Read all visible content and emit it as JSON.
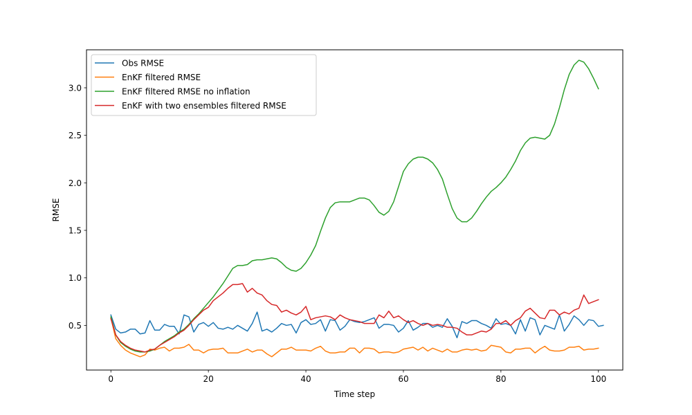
{
  "chart_data": {
    "type": "line",
    "xlabel": "Time step",
    "ylabel": "RMSE",
    "xlim": [
      -5,
      105
    ],
    "ylim": [
      0.03,
      3.4
    ],
    "xticks": [
      0,
      20,
      40,
      60,
      80,
      100
    ],
    "yticks": [
      0.5,
      1.0,
      1.5,
      2.0,
      2.5,
      3.0
    ],
    "xtick_labels": [
      "0",
      "20",
      "40",
      "60",
      "80",
      "100"
    ],
    "ytick_labels": [
      "0.5",
      "1.0",
      "1.5",
      "2.0",
      "2.5",
      "3.0"
    ],
    "grid": false,
    "legend_position": "top-left",
    "series": [
      {
        "name": "Obs RMSE",
        "color": "#1f77b4",
        "values": [
          0.61,
          0.46,
          0.42,
          0.43,
          0.46,
          0.46,
          0.41,
          0.42,
          0.55,
          0.45,
          0.45,
          0.51,
          0.49,
          0.49,
          0.41,
          0.61,
          0.59,
          0.43,
          0.51,
          0.53,
          0.49,
          0.53,
          0.47,
          0.46,
          0.48,
          0.46,
          0.5,
          0.47,
          0.44,
          0.52,
          0.64,
          0.44,
          0.46,
          0.43,
          0.47,
          0.52,
          0.5,
          0.51,
          0.42,
          0.53,
          0.56,
          0.51,
          0.52,
          0.56,
          0.44,
          0.56,
          0.55,
          0.45,
          0.49,
          0.56,
          0.54,
          0.53,
          0.54,
          0.56,
          0.58,
          0.47,
          0.51,
          0.51,
          0.5,
          0.43,
          0.47,
          0.55,
          0.45,
          0.48,
          0.52,
          0.52,
          0.48,
          0.5,
          0.48,
          0.57,
          0.49,
          0.37,
          0.54,
          0.52,
          0.55,
          0.55,
          0.52,
          0.5,
          0.47,
          0.57,
          0.51,
          0.52,
          0.5,
          0.41,
          0.56,
          0.44,
          0.58,
          0.56,
          0.4,
          0.5,
          0.48,
          0.46,
          0.61,
          0.44,
          0.51,
          0.6,
          0.56,
          0.5,
          0.56,
          0.55,
          0.49,
          0.5
        ]
      },
      {
        "name": "EnKF filtered RMSE",
        "color": "#ff7f0e",
        "values": [
          0.58,
          0.36,
          0.29,
          0.24,
          0.21,
          0.19,
          0.17,
          0.19,
          0.25,
          0.24,
          0.26,
          0.27,
          0.23,
          0.26,
          0.26,
          0.27,
          0.3,
          0.24,
          0.24,
          0.21,
          0.24,
          0.25,
          0.25,
          0.26,
          0.21,
          0.21,
          0.21,
          0.23,
          0.25,
          0.22,
          0.24,
          0.24,
          0.2,
          0.17,
          0.21,
          0.25,
          0.25,
          0.27,
          0.24,
          0.24,
          0.24,
          0.23,
          0.26,
          0.28,
          0.23,
          0.21,
          0.21,
          0.22,
          0.22,
          0.26,
          0.26,
          0.21,
          0.26,
          0.26,
          0.25,
          0.21,
          0.22,
          0.22,
          0.21,
          0.22,
          0.25,
          0.26,
          0.27,
          0.24,
          0.27,
          0.23,
          0.26,
          0.24,
          0.22,
          0.25,
          0.22,
          0.22,
          0.24,
          0.25,
          0.24,
          0.25,
          0.23,
          0.24,
          0.29,
          0.28,
          0.27,
          0.22,
          0.21,
          0.25,
          0.25,
          0.26,
          0.26,
          0.21,
          0.25,
          0.28,
          0.24,
          0.23,
          0.23,
          0.24,
          0.27,
          0.27,
          0.28,
          0.24,
          0.25,
          0.25,
          0.26
        ]
      },
      {
        "name": "EnKF filtered RMSE no inflation",
        "color": "#2ca02c",
        "values": [
          0.59,
          0.4,
          0.32,
          0.28,
          0.25,
          0.23,
          0.22,
          0.22,
          0.23,
          0.25,
          0.29,
          0.33,
          0.36,
          0.39,
          0.43,
          0.46,
          0.51,
          0.57,
          0.62,
          0.68,
          0.74,
          0.8,
          0.87,
          0.94,
          1.02,
          1.1,
          1.13,
          1.13,
          1.14,
          1.18,
          1.19,
          1.19,
          1.2,
          1.21,
          1.2,
          1.16,
          1.11,
          1.08,
          1.07,
          1.1,
          1.16,
          1.24,
          1.34,
          1.49,
          1.63,
          1.74,
          1.79,
          1.8,
          1.8,
          1.8,
          1.82,
          1.84,
          1.84,
          1.82,
          1.76,
          1.69,
          1.66,
          1.7,
          1.8,
          1.96,
          2.12,
          2.2,
          2.25,
          2.27,
          2.27,
          2.25,
          2.21,
          2.14,
          2.04,
          1.88,
          1.73,
          1.63,
          1.59,
          1.59,
          1.63,
          1.7,
          1.78,
          1.85,
          1.91,
          1.95,
          2.0,
          2.06,
          2.14,
          2.23,
          2.34,
          2.42,
          2.47,
          2.48,
          2.47,
          2.46,
          2.5,
          2.62,
          2.79,
          2.98,
          3.14,
          3.24,
          3.29,
          3.27,
          3.2,
          3.1,
          2.99
        ]
      },
      {
        "name": "EnKF with two ensembles filtered RMSE",
        "color": "#d62728",
        "values": [
          0.57,
          0.4,
          0.33,
          0.29,
          0.26,
          0.24,
          0.23,
          0.22,
          0.24,
          0.25,
          0.29,
          0.32,
          0.35,
          0.38,
          0.42,
          0.45,
          0.5,
          0.56,
          0.61,
          0.66,
          0.69,
          0.76,
          0.8,
          0.84,
          0.89,
          0.93,
          0.93,
          0.94,
          0.85,
          0.89,
          0.84,
          0.82,
          0.76,
          0.72,
          0.71,
          0.64,
          0.66,
          0.63,
          0.61,
          0.64,
          0.7,
          0.56,
          0.58,
          0.59,
          0.6,
          0.59,
          0.56,
          0.61,
          0.58,
          0.56,
          0.55,
          0.54,
          0.52,
          0.52,
          0.52,
          0.61,
          0.58,
          0.65,
          0.58,
          0.6,
          0.56,
          0.53,
          0.55,
          0.52,
          0.5,
          0.52,
          0.5,
          0.51,
          0.5,
          0.48,
          0.48,
          0.47,
          0.43,
          0.4,
          0.4,
          0.42,
          0.44,
          0.43,
          0.46,
          0.52,
          0.52,
          0.55,
          0.5,
          0.55,
          0.58,
          0.65,
          0.68,
          0.63,
          0.58,
          0.57,
          0.66,
          0.66,
          0.61,
          0.64,
          0.62,
          0.66,
          0.68,
          0.82,
          0.73,
          0.75,
          0.77
        ]
      }
    ]
  }
}
